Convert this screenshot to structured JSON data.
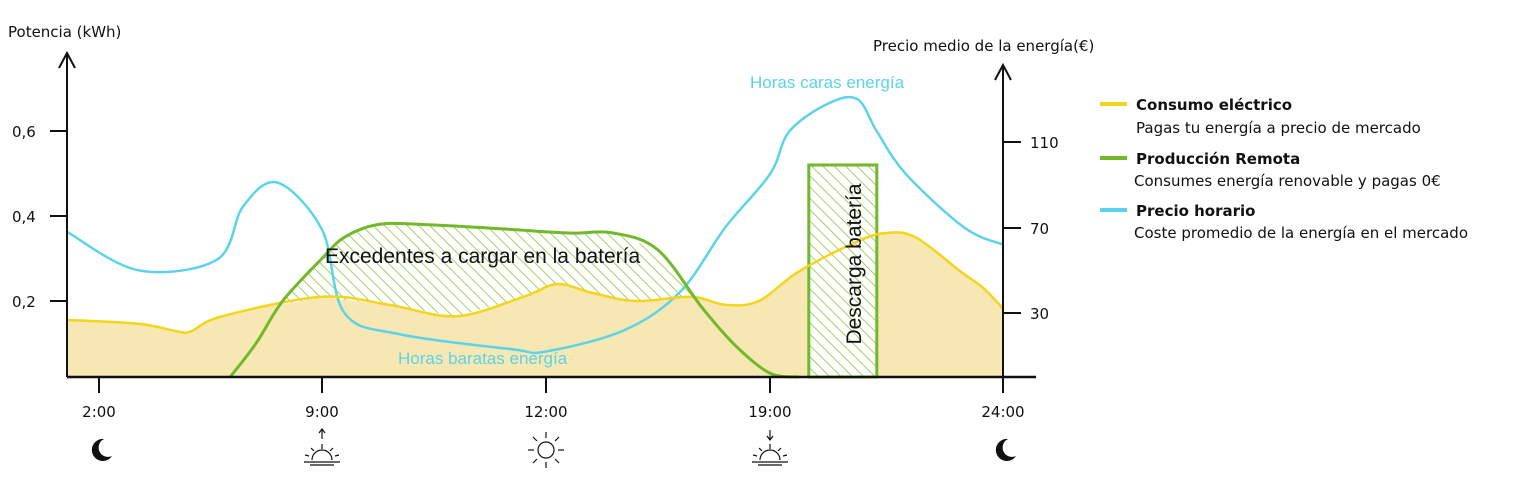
{
  "chart_data": {
    "type": "line",
    "left_axis_title": "Potencia (kWh)",
    "right_axis_title": "Precio medio de la energía(€)",
    "x_ticks": [
      "2:00",
      "9:00",
      "12:00",
      "19:00",
      "24:00"
    ],
    "left_ticks": [
      "0,2",
      "0,4",
      "0,6"
    ],
    "right_ticks": [
      "30",
      "70",
      "110"
    ],
    "time_icons": [
      "moon-icon",
      "sunrise-icon",
      "sun-icon",
      "sunset-icon",
      "moon-icon"
    ],
    "annotations": {
      "expensive": "Horas caras energía",
      "cheap": "Horas baratas energía",
      "surplus": "Excedentes a cargar en la batería",
      "discharge": "Descarga batería"
    },
    "series": [
      {
        "name": "Consumo eléctrico",
        "axis": "left",
        "color": "#f3d51a",
        "points": [
          [
            0.0,
            0.15
          ],
          [
            0.3,
            0.14
          ],
          [
            0.45,
            0.12
          ],
          [
            0.5,
            0.12
          ],
          [
            0.62,
            0.16
          ],
          [
            1.0,
            0.21
          ],
          [
            1.3,
            0.19
          ],
          [
            1.6,
            0.16
          ],
          [
            1.9,
            0.21
          ],
          [
            2.05,
            0.24
          ],
          [
            2.2,
            0.22
          ],
          [
            2.4,
            0.2
          ],
          [
            2.65,
            0.21
          ],
          [
            2.8,
            0.19
          ],
          [
            2.95,
            0.2
          ],
          [
            3.15,
            0.27
          ],
          [
            3.45,
            0.34
          ],
          [
            3.6,
            0.36
          ],
          [
            3.75,
            0.35
          ],
          [
            3.98,
            0.27
          ],
          [
            4.1,
            0.23
          ],
          [
            4.2,
            0.18
          ]
        ]
      },
      {
        "name": "Producción Remota",
        "axis": "left",
        "color": "#72b82b",
        "points": [
          [
            0.65,
            0.0
          ],
          [
            0.75,
            0.09
          ],
          [
            0.85,
            0.2
          ],
          [
            1.0,
            0.3
          ],
          [
            1.1,
            0.35
          ],
          [
            1.25,
            0.38
          ],
          [
            1.45,
            0.38
          ],
          [
            1.8,
            0.37
          ],
          [
            2.1,
            0.36
          ],
          [
            2.3,
            0.36
          ],
          [
            2.5,
            0.32
          ],
          [
            2.7,
            0.18
          ],
          [
            2.85,
            0.08
          ],
          [
            3.0,
            0.01
          ],
          [
            3.15,
            0.0
          ]
        ]
      },
      {
        "name": "Precio horario",
        "axis": "right",
        "color": "#5bd3ea",
        "points": [
          [
            0.0,
            68
          ],
          [
            0.3,
            50
          ],
          [
            0.6,
            55
          ],
          [
            0.7,
            80
          ],
          [
            0.83,
            91
          ],
          [
            1.0,
            69
          ],
          [
            1.1,
            30
          ],
          [
            1.35,
            20
          ],
          [
            1.85,
            13
          ],
          [
            2.0,
            12
          ],
          [
            2.35,
            22
          ],
          [
            2.6,
            40
          ],
          [
            2.8,
            70
          ],
          [
            3.0,
            95
          ],
          [
            3.1,
            115
          ],
          [
            3.3,
            128
          ],
          [
            3.45,
            130
          ],
          [
            3.55,
            115
          ],
          [
            3.7,
            95
          ],
          [
            4.0,
            70
          ],
          [
            4.2,
            62
          ]
        ]
      }
    ],
    "battery_discharge": {
      "x_start": 3.2,
      "x_end": 3.55,
      "value": 0.52
    },
    "legend": [
      {
        "title": "Consumo eléctrico",
        "desc": "Pagas tu energía a precio de mercado",
        "color": "#f3d51a"
      },
      {
        "title": "Producción Remota",
        "desc": "Consumes energía renovable y pagas 0€",
        "color": "#72b82b"
      },
      {
        "title": "Precio horario",
        "desc": "Coste promedio de la energía en el mercado",
        "color": "#5bd3ea"
      }
    ]
  }
}
